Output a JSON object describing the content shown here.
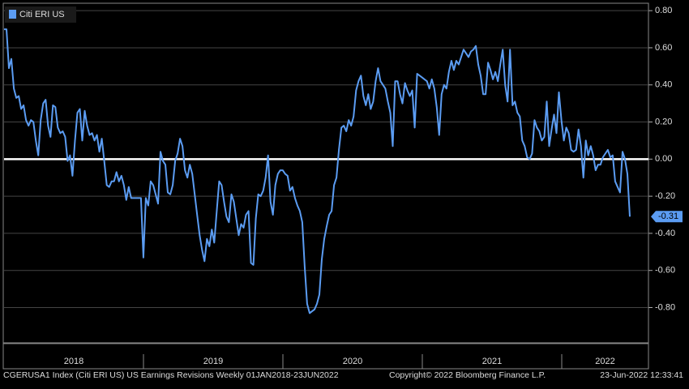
{
  "chart_data": {
    "type": "line",
    "series": [
      {
        "name": "Citi ERI US",
        "color": "#5b9cf2",
        "values": [
          0.7,
          0.7,
          0.49,
          0.54,
          0.38,
          0.33,
          0.34,
          0.27,
          0.29,
          0.21,
          0.18,
          0.21,
          0.2,
          0.1,
          0.02,
          0.21,
          0.3,
          0.32,
          0.18,
          0.12,
          0.29,
          0.28,
          0.17,
          0.14,
          0.15,
          0.12,
          -0.01,
          0.02,
          -0.09,
          0.1,
          0.25,
          0.27,
          0.1,
          0.26,
          0.18,
          0.13,
          0.14,
          0.1,
          0.13,
          0.04,
          0.11,
          -0.01,
          -0.14,
          -0.15,
          -0.12,
          -0.12,
          -0.07,
          -0.12,
          -0.09,
          -0.14,
          -0.22,
          -0.15,
          -0.21,
          -0.21,
          -0.21,
          -0.21,
          -0.21,
          -0.53,
          -0.21,
          -0.25,
          -0.12,
          -0.14,
          -0.19,
          -0.24,
          0.04,
          -0.01,
          -0.03,
          -0.18,
          -0.19,
          -0.14,
          -0.01,
          0.03,
          0.11,
          0.07,
          -0.06,
          -0.1,
          -0.03,
          -0.08,
          -0.19,
          -0.3,
          -0.41,
          -0.49,
          -0.55,
          -0.43,
          -0.47,
          -0.38,
          -0.45,
          -0.28,
          -0.12,
          -0.14,
          -0.23,
          -0.31,
          -0.34,
          -0.19,
          -0.23,
          -0.32,
          -0.41,
          -0.35,
          -0.37,
          -0.3,
          -0.28,
          -0.56,
          -0.57,
          -0.32,
          -0.19,
          -0.2,
          -0.17,
          -0.1,
          0.02,
          -0.23,
          -0.3,
          -0.14,
          -0.08,
          -0.06,
          -0.06,
          -0.08,
          -0.09,
          -0.17,
          -0.15,
          -0.21,
          -0.25,
          -0.28,
          -0.34,
          -0.58,
          -0.78,
          -0.83,
          -0.82,
          -0.81,
          -0.78,
          -0.73,
          -0.54,
          -0.43,
          -0.36,
          -0.3,
          -0.28,
          -0.14,
          -0.1,
          0.05,
          0.17,
          0.18,
          0.15,
          0.21,
          0.18,
          0.23,
          0.37,
          0.42,
          0.45,
          0.34,
          0.29,
          0.35,
          0.27,
          0.31,
          0.42,
          0.49,
          0.42,
          0.4,
          0.38,
          0.31,
          0.25,
          0.07,
          0.42,
          0.42,
          0.35,
          0.3,
          0.41,
          0.37,
          0.34,
          0.37,
          0.17,
          0.46,
          0.45,
          0.44,
          0.43,
          0.42,
          0.38,
          0.43,
          0.38,
          0.28,
          0.13,
          0.35,
          0.4,
          0.38,
          0.47,
          0.53,
          0.48,
          0.53,
          0.51,
          0.55,
          0.59,
          0.57,
          0.55,
          0.58,
          0.59,
          0.61,
          0.51,
          0.45,
          0.35,
          0.35,
          0.52,
          0.48,
          0.43,
          0.47,
          0.42,
          0.51,
          0.59,
          0.4,
          0.31,
          0.59,
          0.29,
          0.31,
          0.25,
          0.23,
          0.1,
          0.07,
          0.01,
          0,
          0.03,
          0.21,
          0.17,
          0.15,
          0.1,
          0.12,
          0.31,
          0.07,
          0.16,
          0.24,
          0.14,
          0.36,
          0.21,
          0.1,
          0.17,
          0.14,
          0.05,
          0.04,
          0.05,
          0.16,
          0.07,
          -0.1,
          0.1,
          0.02,
          0.07,
          0.02,
          -0.06,
          -0.03,
          -0.03,
          0.01,
          0.03,
          0.05,
          0.01,
          0.02,
          -0.12,
          -0.15,
          -0.18,
          0.04,
          0,
          -0.08,
          -0.31
        ]
      }
    ],
    "last_label": "-0.31",
    "x_labels": [
      "2018",
      "2019",
      "2020",
      "2021",
      "2022"
    ],
    "ylim": [
      -0.99,
      0.84
    ],
    "yticks": [
      {
        "value": 0.8,
        "label": "0.80"
      },
      {
        "value": 0.6,
        "label": "0.60"
      },
      {
        "value": 0.4,
        "label": "0.40"
      },
      {
        "value": 0.2,
        "label": "0.20"
      },
      {
        "value": 0,
        "label": "0.00"
      },
      {
        "value": -0.2,
        "label": "-0.20"
      },
      {
        "value": -0.4,
        "label": "-0.40"
      },
      {
        "value": -0.6,
        "label": "-0.60"
      },
      {
        "value": -0.8,
        "label": "-0.80"
      }
    ],
    "grid": true,
    "zero_line": true,
    "legend": "upper left",
    "footer": {
      "description": "CGERUSA1 Index (Citi ERI US) US Earnings Revisions  Weekly 01JAN2018-23JUN2022",
      "copyright": "Copyright© 2022 Bloomberg Finance L.P.",
      "timestamp": "23-Jun-2022 12:33:41"
    }
  }
}
